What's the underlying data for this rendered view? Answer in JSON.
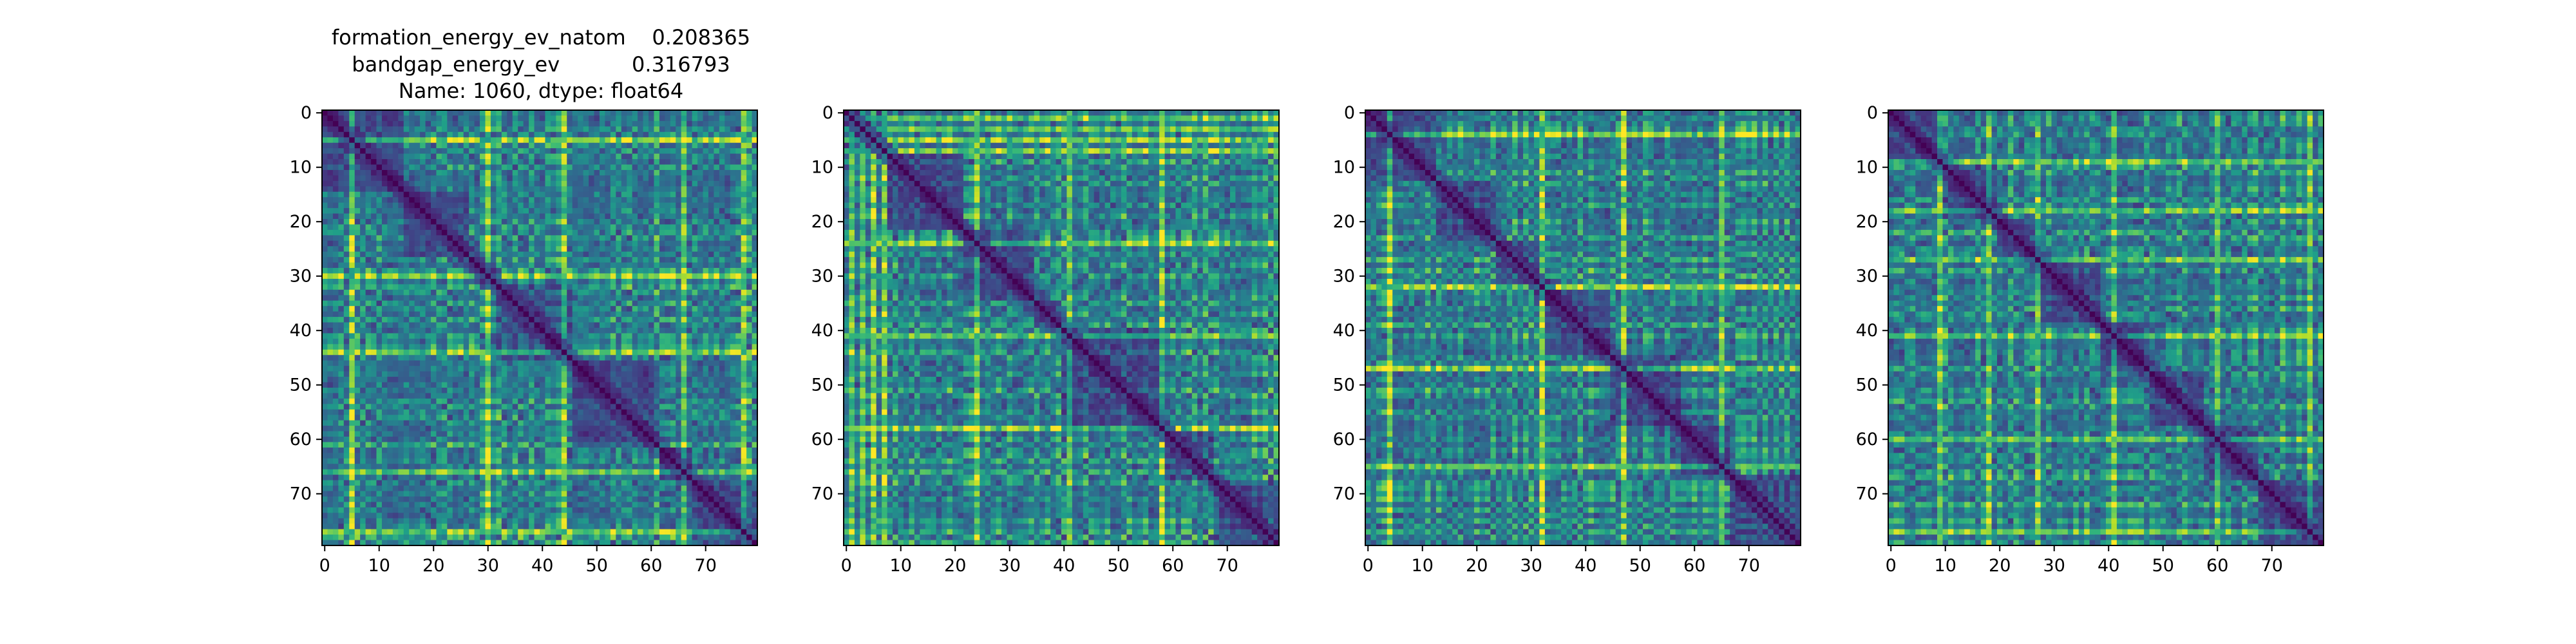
{
  "figure": {
    "title_lines": [
      "formation_energy_ev_natom    0.208365",
      "bandgap_energy_ev           0.316793",
      "Name: 1060, dtype: float64"
    ]
  },
  "colormap": {
    "name": "viridis",
    "stops": [
      "#440154",
      "#482878",
      "#3e4a89",
      "#31688e",
      "#26828e",
      "#1f9e89",
      "#35b779",
      "#6ece58",
      "#b5de2b",
      "#fde725"
    ]
  },
  "chart_data": [
    {
      "type": "heatmap",
      "title": "",
      "rows": 80,
      "cols": 80,
      "xlim": [
        -0.5,
        79.5
      ],
      "ylim": [
        79.5,
        -0.5
      ],
      "xticks": [
        0,
        10,
        20,
        30,
        40,
        50,
        60,
        70
      ],
      "yticks": [
        0,
        10,
        20,
        30,
        40,
        50,
        60,
        70
      ],
      "value_range": [
        0,
        1
      ],
      "diagonal": 0,
      "block_boundaries": [
        15,
        27,
        32,
        46,
        62,
        68
      ],
      "bright_columns": [
        5,
        30,
        44,
        66,
        77
      ],
      "seed": 11
    },
    {
      "type": "heatmap",
      "title": "",
      "rows": 80,
      "cols": 80,
      "xlim": [
        -0.5,
        79.5
      ],
      "ylim": [
        79.5,
        -0.5
      ],
      "xticks": [
        0,
        10,
        20,
        30,
        40,
        50,
        60,
        70
      ],
      "yticks": [
        0,
        10,
        20,
        30,
        40,
        50,
        60,
        70
      ],
      "value_range": [
        0,
        1
      ],
      "diagonal": 0,
      "block_boundaries": [
        8,
        22,
        35,
        40,
        59,
        68
      ],
      "bright_columns": [
        1,
        3,
        5,
        7,
        24,
        41,
        58
      ],
      "seed": 23
    },
    {
      "type": "heatmap",
      "title": "",
      "rows": 80,
      "cols": 80,
      "xlim": [
        -0.5,
        79.5
      ],
      "ylim": [
        79.5,
        -0.5
      ],
      "xticks": [
        0,
        10,
        20,
        30,
        40,
        50,
        60,
        70
      ],
      "yticks": [
        0,
        10,
        20,
        30,
        40,
        50,
        60,
        70
      ],
      "value_range": [
        0,
        1
      ],
      "diagonal": 0,
      "block_boundaries": [
        13,
        24,
        33,
        45,
        58,
        67
      ],
      "bright_columns": [
        4,
        32,
        47,
        65
      ],
      "seed": 37
    },
    {
      "type": "heatmap",
      "title": "",
      "rows": 80,
      "cols": 80,
      "xlim": [
        -0.5,
        79.5
      ],
      "ylim": [
        79.5,
        -0.5
      ],
      "xticks": [
        0,
        10,
        20,
        30,
        40,
        50,
        60,
        70
      ],
      "yticks": [
        0,
        10,
        20,
        30,
        40,
        50,
        60,
        70
      ],
      "value_range": [
        0,
        1
      ],
      "diagonal": 0,
      "block_boundaries": [
        10,
        20,
        28,
        39,
        48,
        58,
        68
      ],
      "bright_columns": [
        9,
        18,
        27,
        41,
        60,
        77
      ],
      "seed": 53
    }
  ]
}
